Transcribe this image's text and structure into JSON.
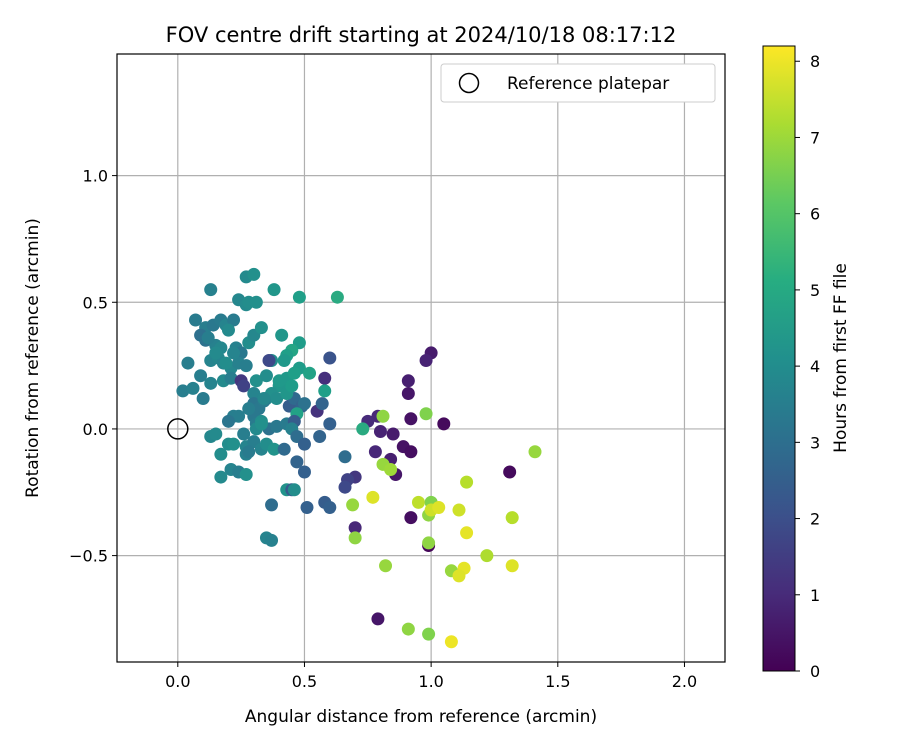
{
  "chart_data": {
    "type": "scatter",
    "title": "FOV centre drift starting at 2024/10/18 08:17:12",
    "xlabel": "Angular distance from reference (arcmin)",
    "ylabel": "Rotation from reference (arcmin)",
    "xlim": [
      -0.24,
      2.16
    ],
    "ylim": [
      -0.92,
      1.48
    ],
    "xticks": [
      0.0,
      0.5,
      1.0,
      1.5,
      2.0
    ],
    "xtick_labels": [
      "0.0",
      "0.5",
      "1.0",
      "1.5",
      "2.0"
    ],
    "yticks": [
      -0.5,
      0.0,
      0.5,
      1.0
    ],
    "ytick_labels": [
      "−0.5",
      "0.0",
      "0.5",
      "1.0"
    ],
    "grid": true,
    "legend": {
      "position": "top-right",
      "entries": [
        "Reference platepar"
      ]
    },
    "reference_point": {
      "x": 0.0,
      "y": 0.0
    },
    "colorbar": {
      "label": "Hours from first FF file",
      "range": [
        0,
        8.2
      ],
      "ticks": [
        0,
        1,
        2,
        3,
        4,
        5,
        6,
        7,
        8
      ],
      "tick_labels": [
        "0",
        "1",
        "2",
        "3",
        "4",
        "5",
        "6",
        "7",
        "8"
      ],
      "colormap": "viridis"
    },
    "points": [
      {
        "x": 1.0,
        "y": 0.3,
        "h": 0.6
      },
      {
        "x": 0.98,
        "y": 0.27,
        "h": 0.8
      },
      {
        "x": 0.91,
        "y": 0.19,
        "h": 0.7
      },
      {
        "x": 0.91,
        "y": 0.14,
        "h": 0.5
      },
      {
        "x": 0.92,
        "y": 0.04,
        "h": 0.4
      },
      {
        "x": 1.05,
        "y": 0.02,
        "h": 0.2
      },
      {
        "x": 0.79,
        "y": 0.05,
        "h": 0.9
      },
      {
        "x": 0.75,
        "y": 0.03,
        "h": 1.0
      },
      {
        "x": 0.8,
        "y": -0.01,
        "h": 0.8
      },
      {
        "x": 0.85,
        "y": -0.02,
        "h": 0.6
      },
      {
        "x": 0.89,
        "y": -0.07,
        "h": 0.4
      },
      {
        "x": 0.92,
        "y": -0.09,
        "h": 0.3
      },
      {
        "x": 0.78,
        "y": -0.09,
        "h": 0.9
      },
      {
        "x": 0.84,
        "y": -0.12,
        "h": 0.7
      },
      {
        "x": 0.86,
        "y": -0.18,
        "h": 0.5
      },
      {
        "x": 0.7,
        "y": -0.19,
        "h": 1.3
      },
      {
        "x": 0.67,
        "y": -0.2,
        "h": 1.6
      },
      {
        "x": 0.66,
        "y": -0.23,
        "h": 1.8
      },
      {
        "x": 0.7,
        "y": -0.39,
        "h": 0.9
      },
      {
        "x": 0.92,
        "y": -0.35,
        "h": 0.3
      },
      {
        "x": 0.99,
        "y": -0.46,
        "h": 0.1
      },
      {
        "x": 1.31,
        "y": -0.17,
        "h": 0.2
      },
      {
        "x": 0.79,
        "y": -0.75,
        "h": 0.5
      },
      {
        "x": 0.81,
        "y": 0.05,
        "h": 6.8
      },
      {
        "x": 0.98,
        "y": 0.06,
        "h": 6.6
      },
      {
        "x": 0.73,
        "y": 0.0,
        "h": 5.0
      },
      {
        "x": 0.81,
        "y": -0.14,
        "h": 6.9
      },
      {
        "x": 0.84,
        "y": -0.16,
        "h": 7.0
      },
      {
        "x": 0.69,
        "y": -0.3,
        "h": 6.9
      },
      {
        "x": 0.77,
        "y": -0.27,
        "h": 7.8
      },
      {
        "x": 0.95,
        "y": -0.29,
        "h": 7.4
      },
      {
        "x": 1.0,
        "y": -0.29,
        "h": 6.6
      },
      {
        "x": 0.99,
        "y": -0.34,
        "h": 6.8
      },
      {
        "x": 1.0,
        "y": -0.32,
        "h": 7.6
      },
      {
        "x": 1.03,
        "y": -0.31,
        "h": 7.8
      },
      {
        "x": 1.11,
        "y": -0.32,
        "h": 7.6
      },
      {
        "x": 1.14,
        "y": -0.21,
        "h": 7.3
      },
      {
        "x": 1.41,
        "y": -0.09,
        "h": 6.9
      },
      {
        "x": 1.32,
        "y": -0.35,
        "h": 7.3
      },
      {
        "x": 1.14,
        "y": -0.41,
        "h": 7.9
      },
      {
        "x": 0.7,
        "y": -0.43,
        "h": 6.8
      },
      {
        "x": 0.99,
        "y": -0.45,
        "h": 6.8
      },
      {
        "x": 1.22,
        "y": -0.5,
        "h": 7.2
      },
      {
        "x": 0.82,
        "y": -0.54,
        "h": 6.9
      },
      {
        "x": 1.32,
        "y": -0.54,
        "h": 7.8
      },
      {
        "x": 1.13,
        "y": -0.55,
        "h": 7.9
      },
      {
        "x": 1.08,
        "y": -0.56,
        "h": 6.9
      },
      {
        "x": 1.11,
        "y": -0.58,
        "h": 7.8
      },
      {
        "x": 0.91,
        "y": -0.79,
        "h": 6.8
      },
      {
        "x": 0.99,
        "y": -0.81,
        "h": 6.6
      },
      {
        "x": 1.08,
        "y": -0.84,
        "h": 8.0
      },
      {
        "x": 0.27,
        "y": 0.6,
        "h": 3.9
      },
      {
        "x": 0.3,
        "y": 0.61,
        "h": 4.1
      },
      {
        "x": 0.38,
        "y": 0.55,
        "h": 4.3
      },
      {
        "x": 0.48,
        "y": 0.52,
        "h": 4.6
      },
      {
        "x": 0.63,
        "y": 0.52,
        "h": 5.0
      },
      {
        "x": 0.13,
        "y": 0.55,
        "h": 3.6
      },
      {
        "x": 0.24,
        "y": 0.51,
        "h": 3.8
      },
      {
        "x": 0.27,
        "y": 0.49,
        "h": 3.9
      },
      {
        "x": 0.28,
        "y": 0.5,
        "h": 4.0
      },
      {
        "x": 0.31,
        "y": 0.5,
        "h": 4.1
      },
      {
        "x": 0.07,
        "y": 0.43,
        "h": 3.4
      },
      {
        "x": 0.11,
        "y": 0.4,
        "h": 3.5
      },
      {
        "x": 0.14,
        "y": 0.41,
        "h": 3.3
      },
      {
        "x": 0.17,
        "y": 0.43,
        "h": 3.4
      },
      {
        "x": 0.19,
        "y": 0.41,
        "h": 3.7
      },
      {
        "x": 0.22,
        "y": 0.43,
        "h": 3.4
      },
      {
        "x": 0.09,
        "y": 0.37,
        "h": 3.0
      },
      {
        "x": 0.11,
        "y": 0.35,
        "h": 3.1
      },
      {
        "x": 0.15,
        "y": 0.33,
        "h": 3.6
      },
      {
        "x": 0.17,
        "y": 0.32,
        "h": 3.8
      },
      {
        "x": 0.2,
        "y": 0.39,
        "h": 3.9
      },
      {
        "x": 0.23,
        "y": 0.32,
        "h": 3.6
      },
      {
        "x": 0.25,
        "y": 0.3,
        "h": 3.3
      },
      {
        "x": 0.28,
        "y": 0.34,
        "h": 4.0
      },
      {
        "x": 0.3,
        "y": 0.37,
        "h": 3.8
      },
      {
        "x": 0.33,
        "y": 0.4,
        "h": 4.1
      },
      {
        "x": 0.41,
        "y": 0.37,
        "h": 4.3
      },
      {
        "x": 0.48,
        "y": 0.34,
        "h": 4.5
      },
      {
        "x": 0.45,
        "y": 0.31,
        "h": 4.8
      },
      {
        "x": 0.43,
        "y": 0.29,
        "h": 4.6
      },
      {
        "x": 0.04,
        "y": 0.26,
        "h": 3.5
      },
      {
        "x": 0.13,
        "y": 0.27,
        "h": 3.7
      },
      {
        "x": 0.16,
        "y": 0.28,
        "h": 3.8
      },
      {
        "x": 0.18,
        "y": 0.26,
        "h": 3.7
      },
      {
        "x": 0.21,
        "y": 0.24,
        "h": 3.8
      },
      {
        "x": 0.24,
        "y": 0.26,
        "h": 3.6
      },
      {
        "x": 0.27,
        "y": 0.25,
        "h": 3.5
      },
      {
        "x": 0.37,
        "y": 0.27,
        "h": 4.0
      },
      {
        "x": 0.42,
        "y": 0.27,
        "h": 4.4
      },
      {
        "x": 0.48,
        "y": 0.24,
        "h": 4.5
      },
      {
        "x": 0.52,
        "y": 0.22,
        "h": 4.7
      },
      {
        "x": 0.58,
        "y": 0.2,
        "h": 1.1
      },
      {
        "x": 0.6,
        "y": 0.28,
        "h": 2.1
      },
      {
        "x": 0.36,
        "y": 0.27,
        "h": 1.8
      },
      {
        "x": 0.09,
        "y": 0.21,
        "h": 3.5
      },
      {
        "x": 0.13,
        "y": 0.18,
        "h": 3.7
      },
      {
        "x": 0.18,
        "y": 0.19,
        "h": 3.9
      },
      {
        "x": 0.21,
        "y": 0.2,
        "h": 3.5
      },
      {
        "x": 0.25,
        "y": 0.19,
        "h": 1.3
      },
      {
        "x": 0.26,
        "y": 0.17,
        "h": 1.6
      },
      {
        "x": 0.31,
        "y": 0.19,
        "h": 4.1
      },
      {
        "x": 0.35,
        "y": 0.21,
        "h": 4.0
      },
      {
        "x": 0.4,
        "y": 0.17,
        "h": 4.3
      },
      {
        "x": 0.43,
        "y": 0.2,
        "h": 4.4
      },
      {
        "x": 0.46,
        "y": 0.22,
        "h": 4.6
      },
      {
        "x": 0.58,
        "y": 0.15,
        "h": 4.6
      },
      {
        "x": 0.02,
        "y": 0.15,
        "h": 3.5
      },
      {
        "x": 0.06,
        "y": 0.16,
        "h": 3.6
      },
      {
        "x": 0.1,
        "y": 0.12,
        "h": 3.4
      },
      {
        "x": 0.3,
        "y": 0.14,
        "h": 3.7
      },
      {
        "x": 0.35,
        "y": 0.12,
        "h": 3.9
      },
      {
        "x": 0.37,
        "y": 0.14,
        "h": 4.1
      },
      {
        "x": 0.39,
        "y": 0.12,
        "h": 4.0
      },
      {
        "x": 0.3,
        "y": 0.1,
        "h": 3.2
      },
      {
        "x": 0.32,
        "y": 0.08,
        "h": 3.3
      },
      {
        "x": 0.34,
        "y": 0.11,
        "h": 3.4
      },
      {
        "x": 0.44,
        "y": 0.09,
        "h": 2.4
      },
      {
        "x": 0.46,
        "y": 0.12,
        "h": 2.8
      },
      {
        "x": 0.49,
        "y": 0.09,
        "h": 2.6
      },
      {
        "x": 0.5,
        "y": 0.1,
        "h": 3.1
      },
      {
        "x": 0.47,
        "y": 0.06,
        "h": 4.7
      },
      {
        "x": 0.55,
        "y": 0.07,
        "h": 1.2
      },
      {
        "x": 0.57,
        "y": 0.1,
        "h": 2.6
      },
      {
        "x": 0.22,
        "y": 0.05,
        "h": 3.5
      },
      {
        "x": 0.24,
        "y": 0.05,
        "h": 3.5
      },
      {
        "x": 0.2,
        "y": 0.03,
        "h": 3.2
      },
      {
        "x": 0.3,
        "y": 0.05,
        "h": 3.3
      },
      {
        "x": 0.31,
        "y": 0.02,
        "h": 3.4
      },
      {
        "x": 0.33,
        "y": 0.03,
        "h": 4.0
      },
      {
        "x": 0.36,
        "y": 0.0,
        "h": 3.1
      },
      {
        "x": 0.39,
        "y": 0.01,
        "h": 3.3
      },
      {
        "x": 0.43,
        "y": 0.02,
        "h": 3.4
      },
      {
        "x": 0.46,
        "y": 0.03,
        "h": 2.4
      },
      {
        "x": 0.45,
        "y": 0.0,
        "h": 3.6
      },
      {
        "x": 0.6,
        "y": 0.02,
        "h": 2.5
      },
      {
        "x": 0.13,
        "y": -0.03,
        "h": 3.8
      },
      {
        "x": 0.15,
        "y": -0.02,
        "h": 3.9
      },
      {
        "x": 0.2,
        "y": -0.06,
        "h": 4.0
      },
      {
        "x": 0.22,
        "y": -0.06,
        "h": 4.1
      },
      {
        "x": 0.26,
        "y": -0.02,
        "h": 3.5
      },
      {
        "x": 0.27,
        "y": -0.07,
        "h": 3.7
      },
      {
        "x": 0.3,
        "y": -0.05,
        "h": 3.5
      },
      {
        "x": 0.33,
        "y": -0.08,
        "h": 3.7
      },
      {
        "x": 0.35,
        "y": -0.06,
        "h": 4.0
      },
      {
        "x": 0.38,
        "y": -0.08,
        "h": 4.2
      },
      {
        "x": 0.42,
        "y": -0.08,
        "h": 2.8
      },
      {
        "x": 0.47,
        "y": -0.03,
        "h": 2.9
      },
      {
        "x": 0.5,
        "y": -0.06,
        "h": 2.5
      },
      {
        "x": 0.56,
        "y": -0.03,
        "h": 2.6
      },
      {
        "x": 0.17,
        "y": -0.1,
        "h": 4.0
      },
      {
        "x": 0.21,
        "y": -0.16,
        "h": 3.7
      },
      {
        "x": 0.24,
        "y": -0.17,
        "h": 3.5
      },
      {
        "x": 0.27,
        "y": -0.18,
        "h": 4.1
      },
      {
        "x": 0.17,
        "y": -0.19,
        "h": 3.9
      },
      {
        "x": 0.27,
        "y": -0.1,
        "h": 3.6
      },
      {
        "x": 0.28,
        "y": -0.09,
        "h": 3.4
      },
      {
        "x": 0.47,
        "y": -0.13,
        "h": 2.6
      },
      {
        "x": 0.5,
        "y": -0.17,
        "h": 2.5
      },
      {
        "x": 0.66,
        "y": -0.11,
        "h": 2.9
      },
      {
        "x": 0.43,
        "y": -0.24,
        "h": 4.2
      },
      {
        "x": 0.45,
        "y": -0.24,
        "h": 2.3
      },
      {
        "x": 0.37,
        "y": -0.3,
        "h": 2.9
      },
      {
        "x": 0.51,
        "y": -0.31,
        "h": 2.5
      },
      {
        "x": 0.58,
        "y": -0.29,
        "h": 2.4
      },
      {
        "x": 0.6,
        "y": -0.31,
        "h": 2.5
      },
      {
        "x": 0.35,
        "y": -0.43,
        "h": 3.7
      },
      {
        "x": 0.37,
        "y": -0.44,
        "h": 3.6
      },
      {
        "x": 0.46,
        "y": -0.24,
        "h": 4.0
      },
      {
        "x": 0.31,
        "y": 0.0,
        "h": 3.9
      },
      {
        "x": 0.33,
        "y": 0.02,
        "h": 4.1
      },
      {
        "x": 0.28,
        "y": 0.08,
        "h": 3.5
      },
      {
        "x": 0.34,
        "y": 0.12,
        "h": 3.8
      },
      {
        "x": 0.22,
        "y": 0.3,
        "h": 3.7
      },
      {
        "x": 0.12,
        "y": 0.36,
        "h": 3.5
      },
      {
        "x": 0.15,
        "y": 0.3,
        "h": 3.9
      },
      {
        "x": 0.19,
        "y": 0.26,
        "h": 4.0
      },
      {
        "x": 0.43,
        "y": 0.14,
        "h": 4.3
      },
      {
        "x": 0.4,
        "y": 0.19,
        "h": 4.4
      },
      {
        "x": 0.45,
        "y": 0.17,
        "h": 4.5
      }
    ]
  }
}
